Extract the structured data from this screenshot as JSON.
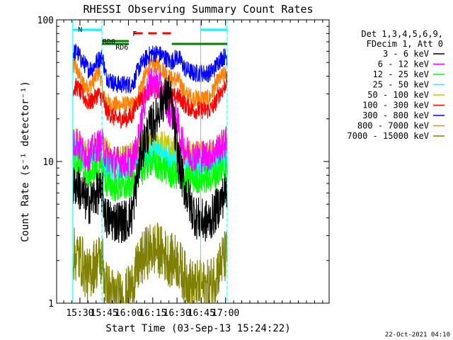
{
  "chart_data": {
    "type": "line",
    "title": "RHESSI Observing Summary Count Rates",
    "xlabel": "Start Time (03-Sep-13 15:24:22)",
    "ylabel": "Count Rate (s⁻¹ detector⁻¹)",
    "y_scale": "log",
    "ylim": [
      1,
      100
    ],
    "xlim_minutes": [
      15.6,
      184.0
    ],
    "x_tick_labels": [
      "15:30",
      "15:45",
      "16:00",
      "16:15",
      "16:30",
      "16:45",
      "17:00"
    ],
    "x_tick_minutes": [
      30,
      45,
      60,
      75,
      90,
      105,
      120
    ],
    "y_tick_labels": [
      "1",
      "10",
      "100"
    ],
    "y_tick_values": [
      1,
      10,
      100
    ],
    "legend": {
      "placement": "right",
      "header": [
        "Det 1,3,4,5,6,9,",
        "FDecim 1, Att 0"
      ],
      "entries": [
        {
          "label": "3 - 6 keV",
          "color": "#000000"
        },
        {
          "label": "6 - 12 keV",
          "color": "#ff00ff"
        },
        {
          "label": "12 - 25 keV",
          "color": "#00ff00"
        },
        {
          "label": "25 - 50 keV",
          "color": "#00ffff"
        },
        {
          "label": "50 - 100 keV",
          "color": "#c8c800"
        },
        {
          "label": "100 - 300 keV",
          "color": "#ff0000"
        },
        {
          "label": "300 - 800 keV",
          "color": "#0000ff"
        },
        {
          "label": "800 - 7000 keV",
          "color": "#ff8000"
        },
        {
          "label": "7000 - 15000 keV",
          "color": "#808000"
        }
      ]
    },
    "annotations": {
      "night_label": "N",
      "saa_labels": [
        "RD0",
        "RD6"
      ],
      "flare_label": "F",
      "timestamp": "22-Oct-2021 04:10"
    },
    "series": [
      {
        "key": "ch800_7000",
        "color": "#ff8000",
        "base": 22,
        "amp": 1.4,
        "noise": 0.05,
        "points": [
          [
            25.6,
            44
          ],
          [
            27,
            48
          ],
          [
            29,
            42
          ],
          [
            31,
            37
          ],
          [
            34,
            33
          ],
          [
            36,
            34
          ],
          [
            40,
            40
          ],
          [
            42,
            44
          ],
          [
            45,
            28
          ],
          [
            49,
            25
          ],
          [
            55,
            25
          ],
          [
            60,
            25
          ],
          [
            64,
            25
          ],
          [
            68,
            35
          ],
          [
            72,
            44
          ],
          [
            75,
            48
          ],
          [
            78,
            48
          ],
          [
            82,
            44
          ],
          [
            86,
            38
          ],
          [
            90,
            38
          ],
          [
            92,
            36
          ],
          [
            95,
            30
          ],
          [
            100,
            28
          ],
          [
            104,
            28
          ],
          [
            110,
            28
          ],
          [
            114,
            35
          ],
          [
            118,
            40
          ],
          [
            121,
            42
          ]
        ]
      },
      {
        "key": "ch300_800",
        "color": "#0000ff",
        "base": 40,
        "amp": 1.4,
        "noise": 0.05,
        "points": [
          [
            25.6,
            58
          ],
          [
            28,
            60
          ],
          [
            31,
            52
          ],
          [
            35,
            45
          ],
          [
            38,
            46
          ],
          [
            41,
            52
          ],
          [
            44,
            55
          ],
          [
            46,
            40
          ],
          [
            52,
            35
          ],
          [
            58,
            35
          ],
          [
            62,
            35
          ],
          [
            64,
            38
          ],
          [
            66,
            45
          ],
          [
            70,
            52
          ],
          [
            74,
            58
          ],
          [
            78,
            58
          ],
          [
            82,
            55
          ],
          [
            86,
            50
          ],
          [
            90,
            55
          ],
          [
            92,
            52
          ],
          [
            95,
            45
          ],
          [
            100,
            42
          ],
          [
            106,
            42
          ],
          [
            110,
            42
          ],
          [
            113,
            45
          ],
          [
            116,
            52
          ],
          [
            119,
            55
          ],
          [
            121,
            55
          ]
        ]
      },
      {
        "key": "ch100_300",
        "color": "#ff0000",
        "base": 30,
        "amp": 1.4,
        "noise": 0.05,
        "points": [
          [
            25.6,
            32
          ],
          [
            28,
            34
          ],
          [
            31,
            30
          ],
          [
            35,
            26
          ],
          [
            38,
            27
          ],
          [
            41,
            30
          ],
          [
            44,
            28
          ],
          [
            46,
            23
          ],
          [
            52,
            20
          ],
          [
            58,
            20
          ],
          [
            62,
            21
          ],
          [
            65,
            26
          ],
          [
            70,
            30
          ],
          [
            74,
            32
          ],
          [
            78,
            32
          ],
          [
            82,
            30
          ],
          [
            86,
            28
          ],
          [
            90,
            29
          ],
          [
            92,
            28
          ],
          [
            95,
            25
          ],
          [
            100,
            23
          ],
          [
            106,
            23
          ],
          [
            110,
            23
          ],
          [
            113,
            25
          ],
          [
            116,
            30
          ],
          [
            119,
            33
          ],
          [
            121,
            38
          ]
        ]
      },
      {
        "key": "ch50_100",
        "color": "#c8c800",
        "base": 14,
        "amp": 1.6,
        "noise": 0.08,
        "points": [
          [
            25.6,
            13
          ],
          [
            28,
            14
          ],
          [
            31,
            12
          ],
          [
            35,
            11
          ],
          [
            38,
            11.5
          ],
          [
            41,
            12
          ],
          [
            44,
            13
          ],
          [
            46,
            12
          ],
          [
            50,
            10
          ],
          [
            56,
            10
          ],
          [
            62,
            11
          ],
          [
            66,
            12
          ],
          [
            70,
            13
          ],
          [
            74,
            14
          ],
          [
            78,
            13
          ],
          [
            82,
            13
          ],
          [
            86,
            12
          ],
          [
            90,
            12
          ],
          [
            95,
            11
          ],
          [
            100,
            11
          ],
          [
            106,
            11
          ],
          [
            110,
            11
          ],
          [
            114,
            12
          ],
          [
            118,
            13
          ],
          [
            121,
            15
          ]
        ]
      },
      {
        "key": "ch25_50",
        "color": "#00ffff",
        "base": 11,
        "amp": 1.5,
        "noise": 0.08,
        "points": [
          [
            25.6,
            11
          ],
          [
            28,
            12
          ],
          [
            31,
            11
          ],
          [
            35,
            10
          ],
          [
            38,
            10.5
          ],
          [
            41,
            11
          ],
          [
            44,
            11
          ],
          [
            46,
            9
          ],
          [
            52,
            8.5
          ],
          [
            58,
            8.5
          ],
          [
            62,
            9
          ],
          [
            66,
            10
          ],
          [
            70,
            11
          ],
          [
            74,
            12
          ],
          [
            78,
            11
          ],
          [
            82,
            11
          ],
          [
            86,
            10
          ],
          [
            90,
            10
          ],
          [
            95,
            9.5
          ],
          [
            100,
            9.5
          ],
          [
            106,
            9.5
          ],
          [
            110,
            9.5
          ],
          [
            114,
            10
          ],
          [
            118,
            11
          ],
          [
            121,
            11
          ]
        ]
      },
      {
        "key": "ch12_25",
        "color": "#00ff00",
        "base": 9,
        "amp": 1.5,
        "noise": 0.08,
        "points": [
          [
            25.6,
            9
          ],
          [
            28,
            10
          ],
          [
            31,
            9
          ],
          [
            35,
            8
          ],
          [
            38,
            8.5
          ],
          [
            41,
            9
          ],
          [
            44,
            9
          ],
          [
            46,
            7
          ],
          [
            52,
            6.5
          ],
          [
            58,
            6.5
          ],
          [
            62,
            7
          ],
          [
            66,
            8
          ],
          [
            70,
            9
          ],
          [
            74,
            10
          ],
          [
            78,
            9
          ],
          [
            82,
            9
          ],
          [
            86,
            8
          ],
          [
            90,
            8
          ],
          [
            95,
            7.5
          ],
          [
            100,
            7.5
          ],
          [
            106,
            7.5
          ],
          [
            110,
            7.5
          ],
          [
            114,
            8
          ],
          [
            118,
            9
          ],
          [
            121,
            9
          ]
        ]
      },
      {
        "key": "ch6_12",
        "color": "#ff00ff",
        "base": 13,
        "amp": 1.6,
        "noise": 0.09,
        "points": [
          [
            25.6,
            13
          ],
          [
            28,
            14
          ],
          [
            31,
            12
          ],
          [
            35,
            11
          ],
          [
            38,
            12
          ],
          [
            41,
            13
          ],
          [
            44,
            13
          ],
          [
            46,
            11
          ],
          [
            52,
            10
          ],
          [
            58,
            10
          ],
          [
            62,
            10
          ],
          [
            65,
            12
          ],
          [
            68,
            20
          ],
          [
            72,
            34
          ],
          [
            75,
            36
          ],
          [
            78,
            36
          ],
          [
            81,
            30
          ],
          [
            84,
            24
          ],
          [
            87,
            22
          ],
          [
            90,
            20
          ],
          [
            92,
            15
          ],
          [
            95,
            12
          ],
          [
            100,
            11
          ],
          [
            106,
            11
          ],
          [
            110,
            11
          ],
          [
            114,
            12
          ],
          [
            118,
            13
          ],
          [
            121,
            14
          ]
        ]
      },
      {
        "key": "ch3_6",
        "color": "#000000",
        "base": 6,
        "amp": 1.8,
        "noise": 0.12,
        "points": [
          [
            25.6,
            6.5
          ],
          [
            28,
            7
          ],
          [
            31,
            6
          ],
          [
            35,
            5
          ],
          [
            38,
            5.5
          ],
          [
            41,
            6
          ],
          [
            44,
            6
          ],
          [
            46,
            4
          ],
          [
            52,
            3.8
          ],
          [
            58,
            3.8
          ],
          [
            62,
            4.2
          ],
          [
            65,
            7
          ],
          [
            68,
            12
          ],
          [
            71,
            15
          ],
          [
            74,
            18
          ],
          [
            77,
            20
          ],
          [
            80,
            26
          ],
          [
            83,
            28
          ],
          [
            85,
            30
          ],
          [
            87,
            24
          ],
          [
            89,
            15
          ],
          [
            91,
            10
          ],
          [
            94,
            7
          ],
          [
            98,
            5
          ],
          [
            102,
            4
          ],
          [
            106,
            3.8
          ],
          [
            110,
            3.8
          ],
          [
            114,
            4.5
          ],
          [
            118,
            5.5
          ],
          [
            121,
            6.5
          ]
        ]
      },
      {
        "key": "ch7000_15000",
        "color": "#808000",
        "base": 2.2,
        "amp": 2.0,
        "noise": 0.15,
        "points": [
          [
            25.6,
            2.2
          ],
          [
            28,
            2.2
          ],
          [
            31,
            2
          ],
          [
            35,
            1.5
          ],
          [
            38,
            1.8
          ],
          [
            41,
            2
          ],
          [
            44,
            2
          ],
          [
            46,
            1.3
          ],
          [
            52,
            1.1
          ],
          [
            58,
            1.1
          ],
          [
            62,
            1.3
          ],
          [
            66,
            1.8
          ],
          [
            70,
            2.2
          ],
          [
            74,
            2.4
          ],
          [
            78,
            2.4
          ],
          [
            82,
            2.2
          ],
          [
            86,
            2
          ],
          [
            90,
            2
          ],
          [
            95,
            1.5
          ],
          [
            100,
            1.3
          ],
          [
            106,
            1.3
          ],
          [
            110,
            1.3
          ],
          [
            114,
            1.6
          ],
          [
            118,
            2
          ],
          [
            121,
            2.2
          ]
        ]
      }
    ],
    "markers": {
      "saa_vertical_lines_minutes": [
        25.6,
        43.6,
        104.6,
        121.0
      ],
      "night_bar_minutes": [
        [
          25.6,
          43.6
        ],
        [
          104.6,
          121.0
        ]
      ],
      "attenuator_bar_minutes": [
        [
          43.6,
          60.2
        ],
        [
          86.8,
          121.0
        ]
      ],
      "flare_bar_minutes": [
        [
          63.5,
          86.6
        ]
      ]
    }
  }
}
